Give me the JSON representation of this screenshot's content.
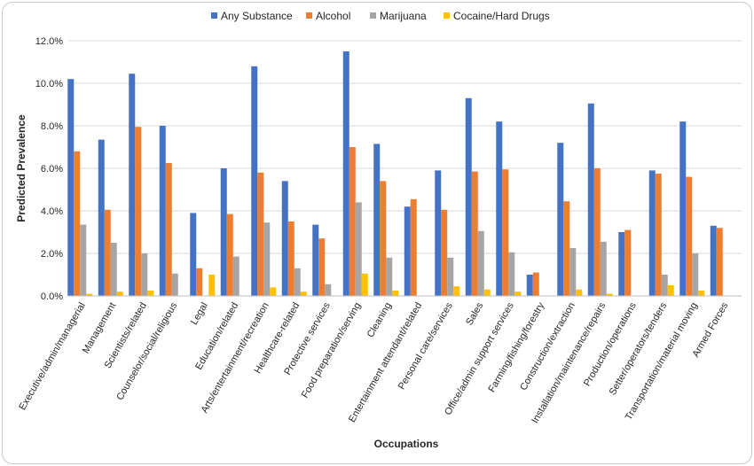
{
  "chart_data": {
    "type": "bar",
    "title": "",
    "xlabel": "Occupations",
    "ylabel": "Predicted Prevalence",
    "ylim": [
      0,
      12
    ],
    "y_unit": "%",
    "y_tick_values": [
      0,
      2,
      4,
      6,
      8,
      10,
      12
    ],
    "y_tick_labels": [
      "0.0%",
      "2.0%",
      "4.0%",
      "6.0%",
      "8.0%",
      "10.0%",
      "12.0%"
    ],
    "grid": true,
    "legend_position": "top",
    "categories": [
      "Executive/admin/managerial",
      "Management",
      "Scientists/related",
      "Counselor/social/religious",
      "Legal",
      "Education/related",
      "Arts/entertainment/recreation",
      "Healthcare-related",
      "Protective services",
      "Food preparation/serving",
      "Cleaning",
      "Entertainment attendant/related",
      "Personal care/services",
      "Sales",
      "Office/admin support services",
      "Farming/fishing/forestry",
      "Construction/extraction",
      "Installation/maintenance/repairs",
      "Production/operations",
      "Setter/operators/tenders",
      "Transportation/material moving",
      "Armed Forces"
    ],
    "series": [
      {
        "name": "Any Substance",
        "color": "#4472C4",
        "values": [
          10.2,
          7.35,
          10.45,
          8.0,
          3.9,
          6.0,
          10.8,
          5.4,
          3.35,
          11.5,
          7.15,
          4.2,
          5.9,
          9.3,
          8.2,
          1.0,
          7.2,
          9.05,
          3.0,
          5.9,
          8.2,
          3.3
        ]
      },
      {
        "name": "Alcohol",
        "color": "#ED7D31",
        "values": [
          6.8,
          4.05,
          7.95,
          6.25,
          1.3,
          3.85,
          5.8,
          3.5,
          2.7,
          7.0,
          5.4,
          4.55,
          4.05,
          5.85,
          5.95,
          1.1,
          4.45,
          6.0,
          3.1,
          5.75,
          5.6,
          3.2
        ]
      },
      {
        "name": "Marijuana",
        "color": "#A5A5A5",
        "values": [
          3.35,
          2.5,
          2.0,
          1.05,
          0,
          1.85,
          3.45,
          1.3,
          0.55,
          4.4,
          1.8,
          0,
          1.8,
          3.05,
          2.05,
          0,
          2.25,
          2.55,
          0,
          1.0,
          2.0,
          0
        ]
      },
      {
        "name": "Cocaine/Hard Drugs",
        "color": "#FFC000",
        "values": [
          0.1,
          0.2,
          0.25,
          0,
          1.0,
          0,
          0.4,
          0.2,
          0,
          1.05,
          0.25,
          0,
          0.45,
          0.3,
          0.2,
          0,
          0.3,
          0.1,
          0,
          0.5,
          0.25,
          0
        ]
      }
    ]
  }
}
